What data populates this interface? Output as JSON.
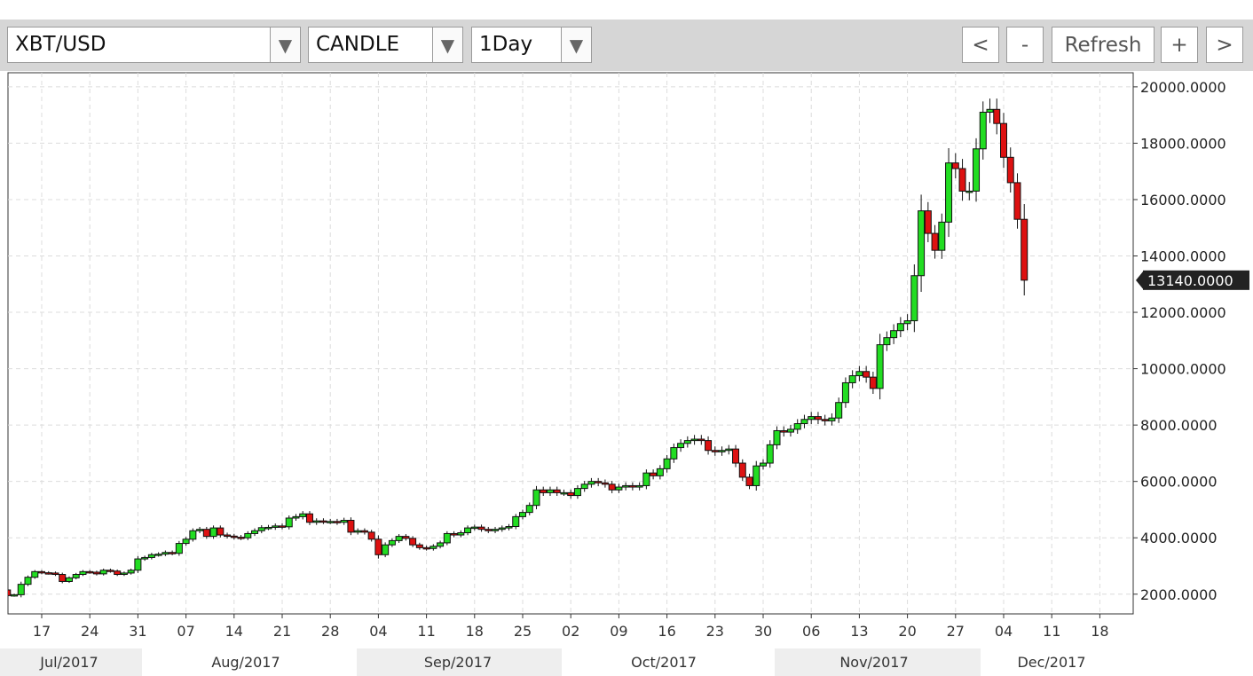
{
  "toolbar": {
    "symbol": "XBT/USD",
    "chart_type": "CANDLE",
    "interval": "1Day",
    "prev_label": "<",
    "zoom_out_label": "-",
    "refresh_label": "Refresh",
    "zoom_in_label": "+",
    "next_label": ">",
    "dropdown_icon": "▼"
  },
  "colors": {
    "up": "#22dd22",
    "down": "#dd1111",
    "grid": "#dcdcdc",
    "axis": "#333333",
    "price_tag_bg": "#222222"
  },
  "chart_data": {
    "type": "candlestick",
    "title": "",
    "ylim": [
      1300,
      20500
    ],
    "y_ticks": [
      "2000.0000",
      "4000.0000",
      "6000.0000",
      "8000.0000",
      "10000.0000",
      "12000.0000",
      "14000.0000",
      "16000.0000",
      "18000.0000",
      "20000.0000"
    ],
    "y_tick_values": [
      2000,
      4000,
      6000,
      8000,
      10000,
      12000,
      14000,
      16000,
      18000,
      20000
    ],
    "last_price_label": "13140.0000",
    "last_price": 13140,
    "x_tick_labels": [
      "17",
      "24",
      "31",
      "07",
      "14",
      "21",
      "28",
      "04",
      "11",
      "18",
      "25",
      "02",
      "09",
      "16",
      "23",
      "30",
      "06",
      "13",
      "20",
      "27",
      "04",
      "11",
      "18"
    ],
    "x_tick_dates": [
      "2017-07-17",
      "2017-07-24",
      "2017-07-31",
      "2017-08-07",
      "2017-08-14",
      "2017-08-21",
      "2017-08-28",
      "2017-09-04",
      "2017-09-11",
      "2017-09-18",
      "2017-09-25",
      "2017-10-02",
      "2017-10-09",
      "2017-10-16",
      "2017-10-23",
      "2017-10-30",
      "2017-11-06",
      "2017-11-13",
      "2017-11-20",
      "2017-11-27",
      "2017-12-04",
      "2017-12-11",
      "2017-12-18"
    ],
    "month_labels": [
      "Jul/2017",
      "Aug/2017",
      "Sep/2017",
      "Oct/2017",
      "Nov/2017",
      "Dec/2017"
    ],
    "grid": true,
    "close": [
      2350,
      2150,
      1950,
      1980,
      2350,
      2600,
      2800,
      2760,
      2750,
      2700,
      2450,
      2580,
      2700,
      2800,
      2780,
      2720,
      2850,
      2820,
      2700,
      2750,
      2850,
      3250,
      3300,
      3400,
      3420,
      3480,
      3450,
      3800,
      3950,
      4250,
      4300,
      4050,
      4350,
      4100,
      4060,
      4020,
      4000,
      4150,
      4250,
      4360,
      4370,
      4420,
      4390,
      4700,
      4750,
      4850,
      4550,
      4600,
      4580,
      4580,
      4550,
      4620,
      4200,
      4250,
      4200,
      3950,
      3400,
      3750,
      3900,
      4050,
      3980,
      3750,
      3650,
      3620,
      3700,
      3820,
      4150,
      4100,
      4180,
      4350,
      4380,
      4300,
      4250,
      4300,
      4350,
      4400,
      4750,
      4900,
      5150,
      5700,
      5600,
      5700,
      5600,
      5600,
      5500,
      5750,
      5900,
      6000,
      5950,
      5900,
      5700,
      5800,
      5850,
      5800,
      5850,
      6300,
      6200,
      6450,
      6800,
      7200,
      7350,
      7450,
      7500,
      7450,
      7100,
      7050,
      7100,
      7150,
      6650,
      6150,
      5850,
      6550,
      6650,
      7300,
      7800,
      7750,
      7850,
      8050,
      8200,
      8300,
      8200,
      8150,
      8250,
      8800,
      9500,
      9750,
      9900,
      9700,
      9300,
      10850,
      11100,
      11350,
      11600,
      11700,
      13300,
      15600,
      14800,
      14200,
      15200,
      17300,
      17100,
      16300,
      16300,
      17800,
      19100,
      19200,
      18700,
      17500,
      16600,
      15300,
      13140
    ]
  }
}
